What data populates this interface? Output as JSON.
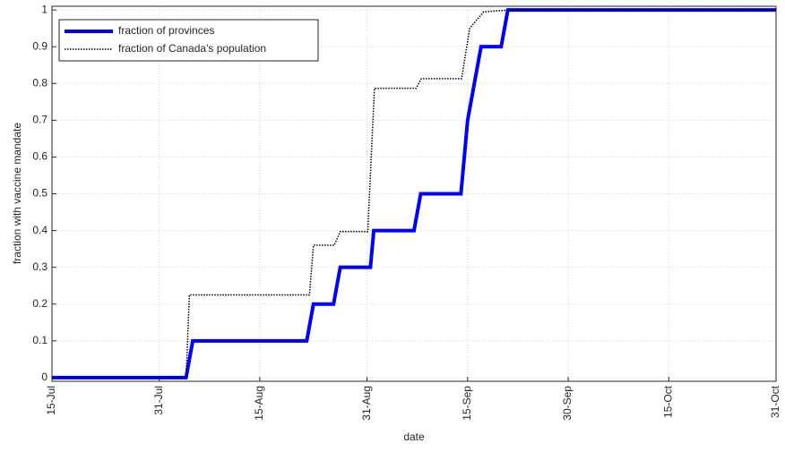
{
  "chart_data": {
    "type": "line",
    "x_label": "date",
    "y_label": "fraction with vaccine mandate",
    "xlim": [
      0,
      108
    ],
    "ylim": [
      -0.01,
      1.01
    ],
    "xticks": [
      {
        "value": 0,
        "label": "15-Jul"
      },
      {
        "value": 16,
        "label": "31-Jul"
      },
      {
        "value": 31,
        "label": "15-Aug"
      },
      {
        "value": 47,
        "label": "31-Aug"
      },
      {
        "value": 62,
        "label": "15-Sep"
      },
      {
        "value": 77,
        "label": "30-Sep"
      },
      {
        "value": 92,
        "label": "15-Oct"
      },
      {
        "value": 108,
        "label": "31-Oct"
      }
    ],
    "yticks": [
      0,
      0.1,
      0.2,
      0.3,
      0.4,
      0.5,
      0.6,
      0.7,
      0.8,
      0.9,
      1
    ],
    "grid": true,
    "legend": "upper left",
    "series": [
      {
        "name": "fraction of provinces",
        "color": "#0000ff",
        "style": "solid",
        "x": [
          0,
          20,
          21,
          38,
          39,
          42,
          43,
          47.5,
          48,
          54,
          55,
          61,
          62,
          64,
          67,
          68,
          108
        ],
        "values": [
          0,
          0,
          0.1,
          0.1,
          0.2,
          0.2,
          0.3,
          0.3,
          0.4,
          0.4,
          0.5,
          0.5,
          0.7,
          0.9,
          0.9,
          1,
          1
        ]
      },
      {
        "name": "fraction of Canada's population",
        "color": "#000000",
        "style": "dotted",
        "x": [
          0,
          20,
          20.5,
          38.4,
          39,
          42.1,
          43,
          47.1,
          48.1,
          54.3,
          55.1,
          61.1,
          62.3,
          64.4,
          68.4,
          108
        ],
        "values": [
          0,
          0,
          0.225,
          0.225,
          0.36,
          0.36,
          0.397,
          0.397,
          0.787,
          0.787,
          0.813,
          0.813,
          0.95,
          0.995,
          1,
          1
        ]
      }
    ]
  }
}
